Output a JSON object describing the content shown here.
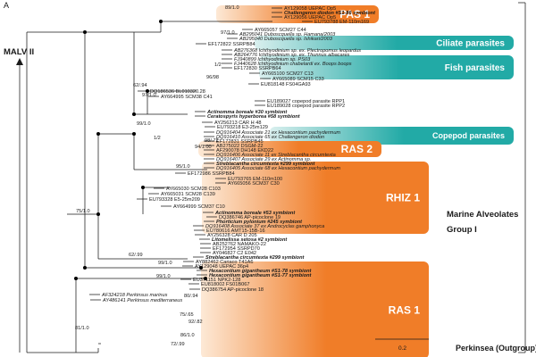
{
  "panel_label": "A",
  "root_label": "MALV II",
  "group_label_line1": "Marine Alveolates",
  "group_label_line2": "Group I",
  "outgroup_label": "Perkinsea (Outgroup)",
  "scale_label": "0.2",
  "colors": {
    "orange": "#f07d28",
    "orange_light": "#fde9d6",
    "teal": "#22aaa6",
    "teal_light": "#d9efee",
    "line": "#1a1a1a"
  },
  "clade_boxes": [
    {
      "label": "PAS 1",
      "color": "orange",
      "y_from": 6,
      "y_to": 26
    },
    {
      "label": "Ciliate parasites",
      "color": "teal",
      "y_from": 40,
      "y_to": 56
    },
    {
      "label": "Fish parasites",
      "color": "teal",
      "y_from": 62,
      "y_to": 89
    },
    {
      "label": "Copepod parasites",
      "color": "teal",
      "y_from": 142,
      "y_to": 162
    },
    {
      "label": "RAS 2",
      "color": "orange",
      "y_from": 158,
      "y_to": 176
    },
    {
      "label": "RHIZ 1",
      "color": "orange",
      "y_from": 181,
      "y_to": 262
    },
    {
      "label": "RAS 1",
      "color": "orange",
      "y_from": 293,
      "y_to": 402
    }
  ],
  "taxa": [
    {
      "text": "AY129058 UEPAC Op5",
      "style": "normal"
    },
    {
      "text": "Challengeron diodon #S1-86 symbiont",
      "style": "bold"
    },
    {
      "text": "AY129056 UEPAC Op5",
      "style": "normal"
    },
    {
      "text": "EU793788 EM-110m169",
      "style": "normal"
    },
    {
      "text": "AY665057 SCM27 C44",
      "style": "normal"
    },
    {
      "text": "AB295041 Duboscquella sp. Hamana/2003",
      "style": "italic"
    },
    {
      "text": "AB295040 Duboscquella sp. Ishikari/2003",
      "style": "italic"
    },
    {
      "text": "EF172822 SSRPB84",
      "style": "normal"
    },
    {
      "text": "AB276368 Ichthyodinium sp. ex. Plectropomus leopardus",
      "style": "italic"
    },
    {
      "text": "AB264776 Ichthyodinium sp. ex. Thunnus albacares",
      "style": "italic"
    },
    {
      "text": "FJ940899 Ichthyodinium sp. PS03",
      "style": "italic"
    },
    {
      "text": "FJ440628 Ichthyodinium chabelardi ex. Boops boops",
      "style": "italic"
    },
    {
      "text": "EF172830 SSRPB64",
      "style": "normal"
    },
    {
      "text": "AY665100 SCM27 C13",
      "style": "normal"
    },
    {
      "text": "AY665089 SCM15 C33",
      "style": "normal"
    },
    {
      "text": "EU818148 FS04GA93",
      "style": "normal"
    },
    {
      "text": "DQ186536 BL010320.28",
      "style": "normal"
    },
    {
      "text": "AY664995 SCM38 C41",
      "style": "normal"
    },
    {
      "text": "EU189027 copepod parasite RPP1",
      "style": "normal"
    },
    {
      "text": "EU189028 copepod parasite RPP2",
      "style": "normal"
    },
    {
      "text": "Actinomma boreale #30 symbiont",
      "style": "bold"
    },
    {
      "text": "Ceratospyris hyperborea #58 symbiont",
      "style": "bold"
    },
    {
      "text": "AY256213 CAR H 48",
      "style": "normal"
    },
    {
      "text": "EU793218 E3-25m129",
      "style": "normal"
    },
    {
      "text": "DQ916404 Associate 21 ex Hexacontium pachydermum",
      "style": "italic"
    },
    {
      "text": "DQ916410 Associate 65 ex Challengeron diodon",
      "style": "italic"
    },
    {
      "text": "EF172831 SSRPB45",
      "style": "normal"
    },
    {
      "text": "AB275022 DSGM-22",
      "style": "normal"
    },
    {
      "text": "AF290078 DH148 EKD22",
      "style": "normal"
    },
    {
      "text": "DQ916406 Associate 11 ex Streblacantha circumtexta",
      "style": "italic"
    },
    {
      "text": "DQ916407 Associate 29 ex Actinomma sp.",
      "style": "italic"
    },
    {
      "text": "Streblacantha circumtexta #299 symbiont",
      "style": "bold"
    },
    {
      "text": "DQ916405 Associate 68 ex Hexacontium pachydermum",
      "style": "italic"
    },
    {
      "text": "EF172986 SSRPB84",
      "style": "normal"
    },
    {
      "text": "EU793765 EM-110m100",
      "style": "normal"
    },
    {
      "text": "AY665056 SCM37 C30",
      "style": "normal"
    },
    {
      "text": "AY665030 SCM28 C103",
      "style": "normal"
    },
    {
      "text": "AY665031 SCM28 C139",
      "style": "normal"
    },
    {
      "text": "EU793328 E5-25m209",
      "style": "normal"
    },
    {
      "text": "AY664999 SCM37 C10",
      "style": "normal"
    },
    {
      "text": "Actinomma boreale #53 symbiont",
      "style": "bold"
    },
    {
      "text": "DQ386746 AP-picoclone 19",
      "style": "normal"
    },
    {
      "text": "Phorticium pylonium #245 symbiont",
      "style": "bold"
    },
    {
      "text": "DQ916408 Associate 37 ex Androcyclas gamphonyca",
      "style": "italic"
    },
    {
      "text": "EU780616 AMT15-15B-16",
      "style": "normal"
    },
    {
      "text": "AY256328 CAR D 205",
      "style": "normal"
    },
    {
      "text": "Litomelissa setosa #2 symbiont",
      "style": "bold"
    },
    {
      "text": "AB252762 NAMAKO-22",
      "style": "normal"
    },
    {
      "text": "EF172954 SSRPD70",
      "style": "normal"
    },
    {
      "text": "AY046827 C2 E042",
      "style": "normal"
    },
    {
      "text": "Streblacantha circumtexta #299 symbiont",
      "style": "bold"
    },
    {
      "text": "AY882462 Cariaco T41A6",
      "style": "normal"
    },
    {
      "text": "AY129048 UEPAC 36p4",
      "style": "normal"
    },
    {
      "text": "Hexacontium gigantheum #S1-78 symbiont",
      "style": "bold"
    },
    {
      "text": "Hexacontium gigantheum #S1-77 symbiont",
      "style": "bold"
    },
    {
      "text": "EU371151 NPK2-128",
      "style": "normal"
    },
    {
      "text": "EU818002 FS01B067",
      "style": "normal"
    },
    {
      "text": "DQ386754 AP-picoclone 18",
      "style": "normal"
    },
    {
      "text": "AF324218 Perkinsus marinus",
      "style": "italic"
    },
    {
      "text": "AY486141 Perkinsus mediterraneus",
      "style": "italic"
    }
  ],
  "supports": [
    "89/1.0",
    "97/1.0",
    "1/2",
    "96/98",
    "62/.94",
    "97/1.0",
    "99/1.0",
    "1/2",
    "98/.72",
    "94/1.00",
    "95/1.0",
    "75/1.0",
    "62/.99",
    "99/1.0",
    "99/1.0",
    "80/.94",
    "75/.65",
    "92/.82",
    "86/1.0",
    "72/.99",
    "81/1.0"
  ]
}
